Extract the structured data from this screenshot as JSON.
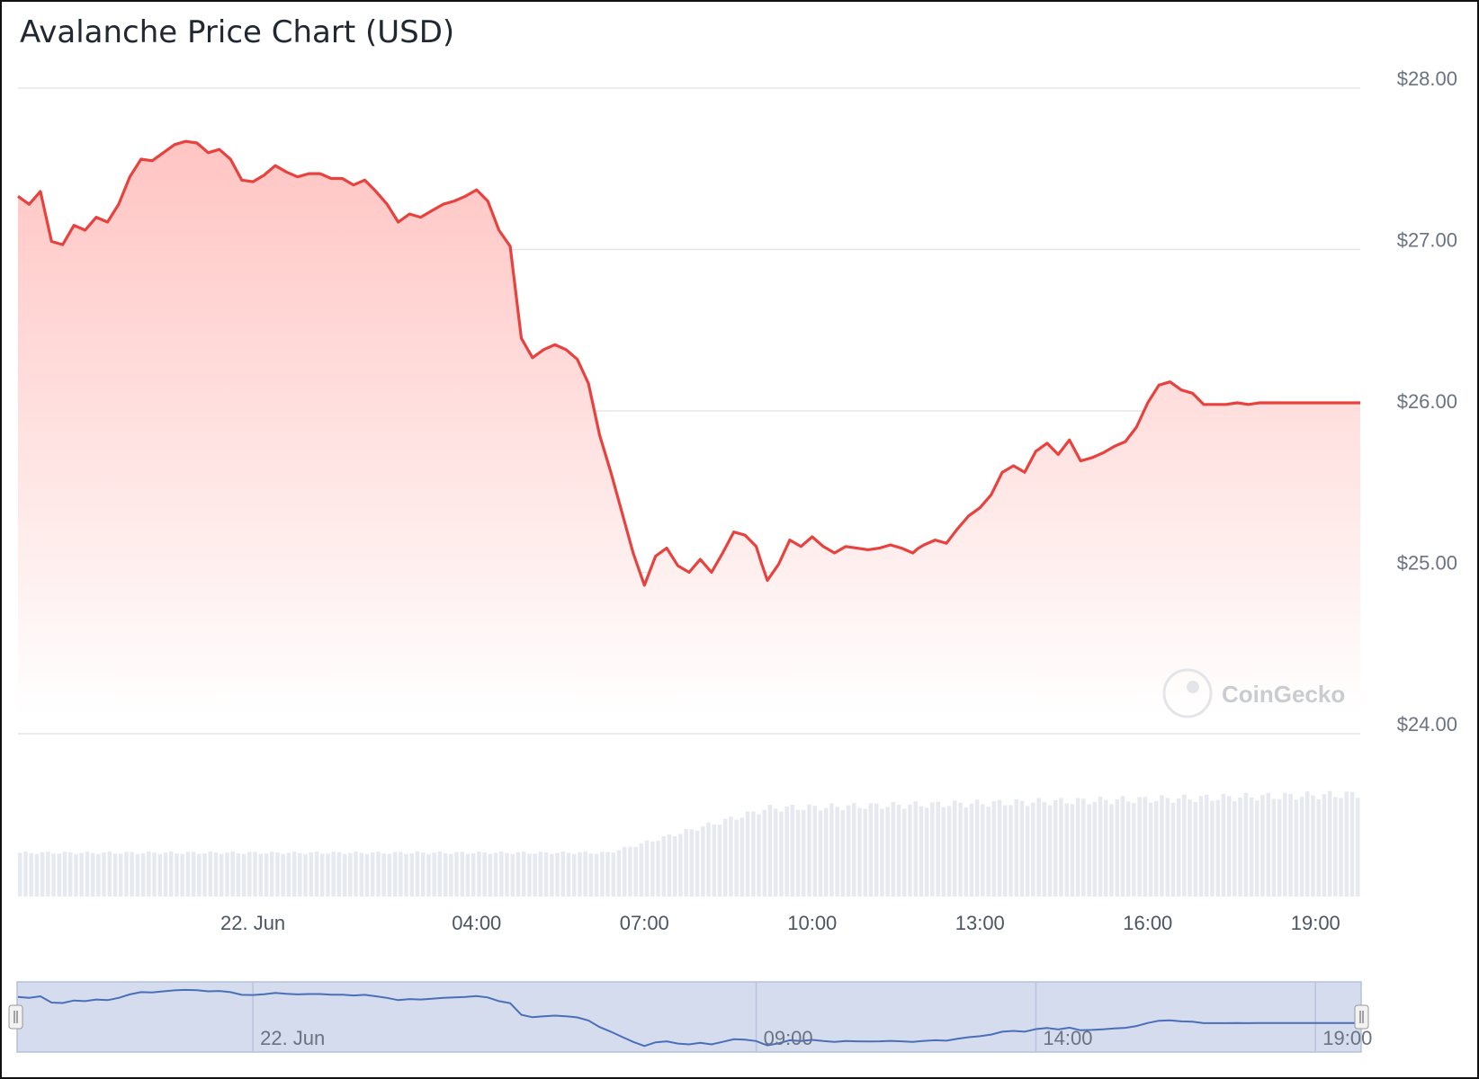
{
  "chart_data": {
    "type": "area",
    "title": "Avalanche Price Chart (USD)",
    "xlabel": "",
    "ylabel": "",
    "ylim": [
      24,
      28
    ],
    "y_ticks": [
      "$24.00",
      "$25.00",
      "$26.00",
      "$27.00",
      "$28.00"
    ],
    "x_ticks": [
      {
        "label": "22. Jun",
        "hour": 24
      },
      {
        "label": "04:00",
        "hour": 28
      },
      {
        "label": "07:00",
        "hour": 31
      },
      {
        "label": "10:00",
        "hour": 34
      },
      {
        "label": "13:00",
        "hour": 37
      },
      {
        "label": "16:00",
        "hour": 40
      },
      {
        "label": "19:00",
        "hour": 43
      }
    ],
    "x_range": [
      19.8,
      43.8
    ],
    "grid": true,
    "legend": "none",
    "colors": {
      "line": "#e8423f",
      "fill_top": "#ffc2c0",
      "volume": "#e6e9ef",
      "navigator_fill": "#d5dcee",
      "navigator_line": "#4a6fb8"
    },
    "series": [
      {
        "x": [
          19.8,
          20.0,
          20.2,
          20.4,
          20.6,
          20.8,
          21.0,
          21.2,
          21.4,
          21.6,
          21.8,
          22.0,
          22.2,
          22.4,
          22.6,
          22.8,
          23.0,
          23.2,
          23.4,
          23.6,
          23.8,
          24.0,
          24.2,
          24.4,
          24.6,
          24.8,
          25.0,
          25.2,
          25.4,
          25.6,
          25.8,
          26.0,
          26.2,
          26.4,
          26.6,
          26.8,
          27.0,
          27.2,
          27.4,
          27.6,
          27.8,
          28.0,
          28.2,
          28.4,
          28.6,
          28.8,
          29.0,
          29.2,
          29.4,
          29.6,
          29.8,
          30.0,
          30.2,
          30.4,
          30.6,
          30.8,
          31.0,
          31.2,
          31.4,
          31.6,
          31.8,
          32.0,
          32.2,
          32.4,
          32.6,
          32.8,
          33.0,
          33.1,
          33.2,
          33.4,
          33.6,
          33.8,
          34.0,
          34.2,
          34.4,
          34.6,
          34.8,
          35.0,
          35.2,
          35.4,
          35.6,
          35.8,
          35.9,
          36.0,
          36.2,
          36.4,
          36.6,
          36.8,
          37.0,
          37.2,
          37.4,
          37.6,
          37.8,
          38.0,
          38.2,
          38.4,
          38.6,
          38.8,
          39.0,
          39.2,
          39.4,
          39.6,
          39.8,
          40.0,
          40.2,
          40.4,
          40.6,
          40.8,
          41.0,
          41.2,
          41.4,
          41.6,
          41.8,
          42.0,
          42.2,
          42.4,
          42.6,
          42.8,
          43.0,
          43.2,
          43.4,
          43.6,
          43.8
        ],
        "values": [
          27.33,
          27.28,
          27.36,
          27.05,
          27.03,
          27.15,
          27.12,
          27.2,
          27.17,
          27.28,
          27.45,
          27.56,
          27.55,
          27.6,
          27.65,
          27.67,
          27.66,
          27.6,
          27.62,
          27.56,
          27.43,
          27.42,
          27.46,
          27.52,
          27.48,
          27.45,
          27.47,
          27.47,
          27.44,
          27.44,
          27.4,
          27.43,
          27.36,
          27.28,
          27.17,
          27.22,
          27.2,
          27.24,
          27.28,
          27.3,
          27.33,
          27.37,
          27.3,
          27.12,
          27.02,
          26.45,
          26.33,
          26.38,
          26.41,
          26.38,
          26.32,
          26.17,
          25.85,
          25.62,
          25.37,
          25.12,
          24.92,
          25.1,
          25.15,
          25.04,
          25.0,
          25.08,
          25.0,
          25.12,
          25.25,
          25.23,
          25.16,
          25.05,
          24.95,
          25.05,
          25.2,
          25.16,
          25.22,
          25.16,
          25.12,
          25.16,
          25.15,
          25.14,
          25.15,
          25.17,
          25.15,
          25.12,
          25.15,
          25.17,
          25.2,
          25.18,
          25.27,
          25.35,
          25.4,
          25.48,
          25.62,
          25.66,
          25.62,
          25.75,
          25.8,
          25.73,
          25.82,
          25.69,
          25.71,
          25.74,
          25.78,
          25.81,
          25.9,
          26.05,
          26.16,
          26.18,
          26.13,
          26.11,
          26.04,
          26.04,
          26.04,
          26.05,
          26.04,
          26.05,
          26.05,
          26.05,
          26.05,
          26.05,
          26.05,
          26.05,
          26.05,
          26.05,
          26.05
        ],
        "volume_range": [
          0,
          1
        ],
        "volume_level_start": 0.22,
        "volume_level_end": 0.72
      }
    ],
    "watermark": "CoinGecko",
    "navigator_ticks": [
      "22. Jun",
      "09:00",
      "14:00",
      "19:00"
    ]
  }
}
